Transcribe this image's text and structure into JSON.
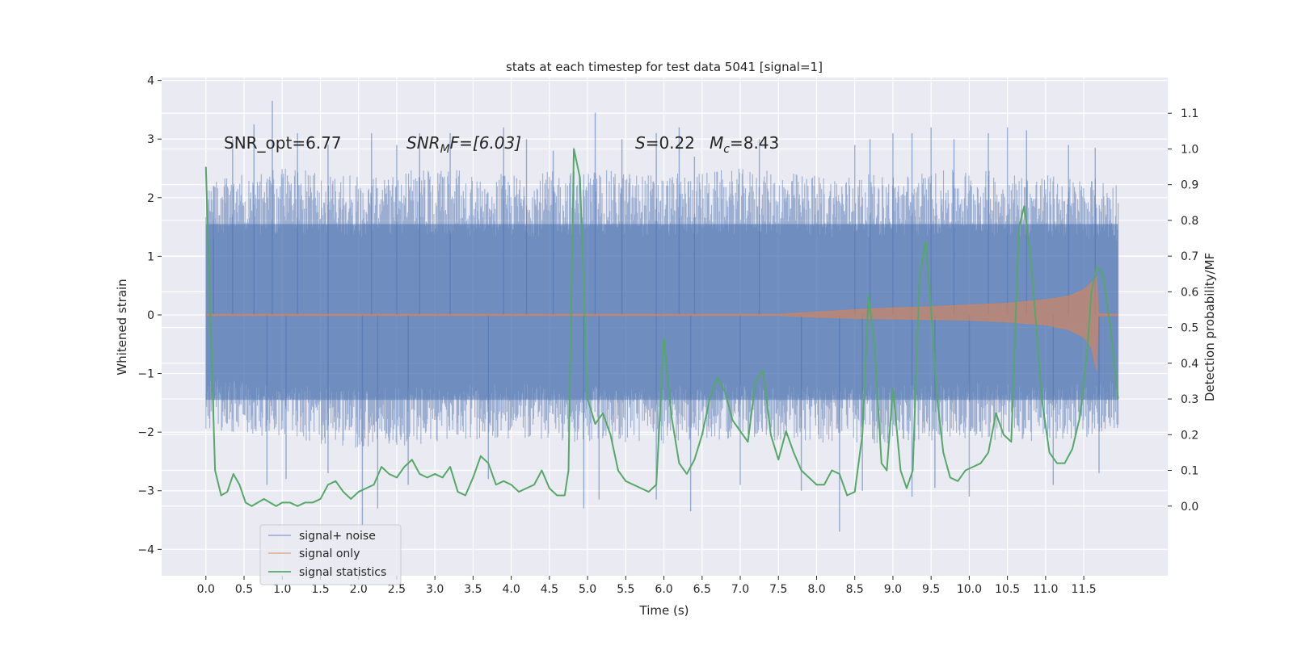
{
  "chart_data": {
    "type": "line",
    "title": "stats at each timestep for test data 5041 [signal=1]",
    "xlabel": "Time (s)",
    "ylabel": "Whitened strain",
    "y2label": "Detection probability/MF",
    "xlim": [
      -0.58,
      12.6
    ],
    "ylim": [
      -4.45,
      4.05
    ],
    "y2lim": [
      -0.195,
      1.2
    ],
    "x_ticks": [
      "0.0",
      "0.5",
      "1.0",
      "1.5",
      "2.0",
      "2.5",
      "3.0",
      "3.5",
      "4.0",
      "4.5",
      "5.0",
      "5.5",
      "6.0",
      "6.5",
      "7.0",
      "7.5",
      "8.0",
      "8.5",
      "9.0",
      "9.5",
      "10.0",
      "10.5",
      "11.0",
      "11.5"
    ],
    "y_ticks": [
      "−4",
      "−3",
      "−2",
      "−1",
      "0",
      "1",
      "2",
      "3",
      "4"
    ],
    "y2_ticks": [
      "0.0",
      "0.1",
      "0.2",
      "0.3",
      "0.4",
      "0.5",
      "0.6",
      "0.7",
      "0.8",
      "0.9",
      "1.0",
      "1.1"
    ],
    "grid": true,
    "legend_position": "lower-left",
    "annotations": {
      "snr_opt": "SNR_opt=6.77",
      "snr_mf_base": "SNR",
      "snr_mf_sub": "M",
      "snr_mf_rest": "F=[6.03]",
      "s_symbol": "S",
      "s_value": "=0.22",
      "mc_base": "M",
      "mc_sub": "c",
      "mc_value": "=8.43"
    },
    "colors": {
      "noise": "#4c72b0",
      "signal": "#dd8452",
      "stats": "#55a868",
      "background": "#eaeaf2",
      "grid": "#ffffff"
    },
    "series": [
      {
        "name": "signal+ noise",
        "kind": "noise-band",
        "axis": "left",
        "envelope_x": [
          0.0,
          1.0,
          2.0,
          3.0,
          4.0,
          5.0,
          6.0,
          7.0,
          8.0,
          9.0,
          10.0,
          11.0,
          11.95
        ],
        "envelope_upper": [
          2.3,
          2.5,
          2.4,
          2.5,
          2.4,
          2.5,
          2.4,
          2.5,
          2.4,
          2.4,
          2.5,
          2.4,
          2.3
        ],
        "envelope_lower": [
          -2.0,
          -2.1,
          -2.3,
          -2.2,
          -2.1,
          -2.2,
          -2.2,
          -2.1,
          -2.2,
          -2.2,
          -2.1,
          -2.2,
          -2.0
        ],
        "spikes": [
          [
            0.1,
            2.2
          ],
          [
            0.35,
            3.0
          ],
          [
            0.63,
            3.25
          ],
          [
            0.87,
            3.65
          ],
          [
            1.2,
            3.1
          ],
          [
            1.6,
            2.9
          ],
          [
            2.17,
            3.1
          ],
          [
            2.5,
            2.9
          ],
          [
            2.8,
            3.1
          ],
          [
            3.2,
            3.1
          ],
          [
            3.9,
            3.2
          ],
          [
            4.2,
            3.0
          ],
          [
            4.55,
            2.8
          ],
          [
            5.1,
            3.45
          ],
          [
            5.45,
            3.0
          ],
          [
            5.9,
            3.1
          ],
          [
            6.2,
            3.2
          ],
          [
            6.4,
            2.7
          ],
          [
            7.25,
            3.0
          ],
          [
            8.5,
            2.9
          ],
          [
            8.7,
            3.0
          ],
          [
            9.0,
            3.1
          ],
          [
            9.25,
            3.1
          ],
          [
            9.5,
            3.2
          ],
          [
            9.8,
            3.0
          ],
          [
            10.25,
            3.1
          ],
          [
            10.5,
            3.2
          ],
          [
            10.75,
            3.15
          ],
          [
            11.3,
            2.9
          ],
          [
            11.65,
            2.85
          ],
          [
            0.8,
            -2.9
          ],
          [
            1.05,
            -2.8
          ],
          [
            1.6,
            -2.7
          ],
          [
            2.05,
            -3.6
          ],
          [
            2.25,
            -3.3
          ],
          [
            2.65,
            -2.9
          ],
          [
            3.7,
            -2.8
          ],
          [
            4.95,
            -3.3
          ],
          [
            5.15,
            -3.15
          ],
          [
            5.9,
            -3.15
          ],
          [
            6.35,
            -3.35
          ],
          [
            7.0,
            -2.9
          ],
          [
            7.8,
            -3.0
          ],
          [
            8.3,
            -3.7
          ],
          [
            8.6,
            -3.0
          ],
          [
            9.25,
            -3.1
          ],
          [
            9.55,
            -2.95
          ],
          [
            10.0,
            -3.1
          ],
          [
            11.1,
            -2.9
          ],
          [
            11.7,
            -2.7
          ]
        ]
      },
      {
        "name": "signal only",
        "kind": "chirp",
        "axis": "left",
        "x": [
          0.0,
          7.5,
          8.0,
          8.5,
          9.0,
          9.5,
          10.0,
          10.5,
          11.0,
          11.3,
          11.5,
          11.6,
          11.67,
          11.69,
          11.95
        ],
        "upper": [
          0.01,
          0.01,
          0.05,
          0.09,
          0.12,
          0.14,
          0.17,
          0.2,
          0.26,
          0.32,
          0.43,
          0.55,
          0.65,
          0.02,
          0.01
        ],
        "lower": [
          -0.01,
          -0.01,
          -0.04,
          -0.06,
          -0.07,
          -0.08,
          -0.09,
          -0.12,
          -0.17,
          -0.25,
          -0.38,
          -0.55,
          -0.95,
          -0.02,
          -0.01
        ]
      },
      {
        "name": "signal statistics",
        "kind": "line",
        "axis": "right",
        "x": [
          0.0,
          0.12,
          0.2,
          0.28,
          0.36,
          0.44,
          0.52,
          0.6,
          0.68,
          0.76,
          0.84,
          0.92,
          1.0,
          1.1,
          1.2,
          1.3,
          1.4,
          1.5,
          1.6,
          1.7,
          1.8,
          1.9,
          2.0,
          2.1,
          2.2,
          2.3,
          2.4,
          2.5,
          2.6,
          2.7,
          2.8,
          2.9,
          3.0,
          3.1,
          3.2,
          3.3,
          3.4,
          3.5,
          3.6,
          3.7,
          3.8,
          3.9,
          4.0,
          4.1,
          4.2,
          4.3,
          4.4,
          4.5,
          4.6,
          4.7,
          4.75,
          4.82,
          4.9,
          5.0,
          5.1,
          5.2,
          5.3,
          5.4,
          5.5,
          5.6,
          5.7,
          5.8,
          5.9,
          6.0,
          6.1,
          6.2,
          6.3,
          6.4,
          6.5,
          6.6,
          6.7,
          6.8,
          6.9,
          7.0,
          7.1,
          7.2,
          7.3,
          7.4,
          7.5,
          7.6,
          7.7,
          7.8,
          7.9,
          8.0,
          8.1,
          8.2,
          8.3,
          8.4,
          8.5,
          8.6,
          8.68,
          8.76,
          8.85,
          8.92,
          9.0,
          9.1,
          9.18,
          9.26,
          9.35,
          9.43,
          9.5,
          9.58,
          9.66,
          9.75,
          9.85,
          9.95,
          10.05,
          10.15,
          10.25,
          10.35,
          10.45,
          10.55,
          10.65,
          10.72,
          10.8,
          10.88,
          10.95,
          11.05,
          11.15,
          11.25,
          11.35,
          11.45,
          11.55,
          11.6,
          11.67,
          11.75,
          11.85,
          11.95
        ],
        "values": [
          0.95,
          0.1,
          0.03,
          0.04,
          0.09,
          0.06,
          0.01,
          0.0,
          0.01,
          0.02,
          0.01,
          0.0,
          0.01,
          0.01,
          0.0,
          0.01,
          0.01,
          0.02,
          0.06,
          0.07,
          0.04,
          0.02,
          0.04,
          0.05,
          0.06,
          0.11,
          0.09,
          0.08,
          0.11,
          0.13,
          0.09,
          0.08,
          0.09,
          0.08,
          0.11,
          0.04,
          0.03,
          0.08,
          0.14,
          0.12,
          0.06,
          0.07,
          0.06,
          0.04,
          0.05,
          0.06,
          0.1,
          0.05,
          0.03,
          0.03,
          0.1,
          1.0,
          0.92,
          0.3,
          0.23,
          0.26,
          0.2,
          0.1,
          0.07,
          0.06,
          0.05,
          0.04,
          0.06,
          0.47,
          0.25,
          0.12,
          0.09,
          0.13,
          0.2,
          0.3,
          0.36,
          0.32,
          0.24,
          0.21,
          0.18,
          0.35,
          0.38,
          0.2,
          0.13,
          0.21,
          0.15,
          0.1,
          0.08,
          0.06,
          0.06,
          0.1,
          0.09,
          0.03,
          0.04,
          0.2,
          0.59,
          0.45,
          0.12,
          0.1,
          0.33,
          0.1,
          0.05,
          0.1,
          0.65,
          0.74,
          0.55,
          0.3,
          0.15,
          0.08,
          0.07,
          0.1,
          0.11,
          0.12,
          0.15,
          0.26,
          0.2,
          0.18,
          0.78,
          0.84,
          0.7,
          0.5,
          0.3,
          0.15,
          0.12,
          0.12,
          0.16,
          0.25,
          0.45,
          0.6,
          0.67,
          0.65,
          0.5,
          0.3
        ]
      }
    ]
  }
}
